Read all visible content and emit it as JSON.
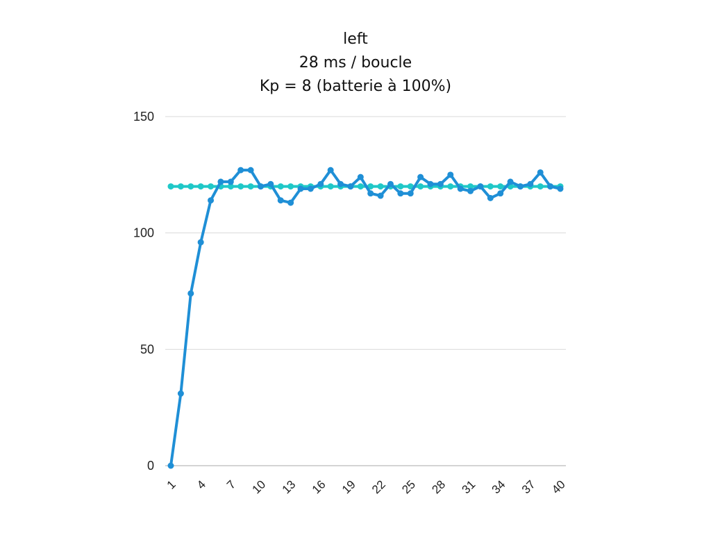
{
  "chart_data": {
    "type": "line",
    "title_lines": [
      "left",
      "28 ms / boucle",
      "Kp = 8 (batterie à 100%)"
    ],
    "xlabel": "",
    "ylabel": "",
    "x": [
      1,
      2,
      3,
      4,
      5,
      6,
      7,
      8,
      9,
      10,
      11,
      12,
      13,
      14,
      15,
      16,
      17,
      18,
      19,
      20,
      21,
      22,
      23,
      24,
      25,
      26,
      27,
      28,
      29,
      30,
      31,
      32,
      33,
      34,
      35,
      36,
      37,
      38,
      39,
      40
    ],
    "x_tick_labels": [
      "1",
      "4",
      "7",
      "10",
      "13",
      "16",
      "19",
      "22",
      "25",
      "28",
      "31",
      "34",
      "37",
      "40"
    ],
    "ylim": [
      0,
      150
    ],
    "y_ticks": [
      0,
      50,
      100,
      150
    ],
    "grid": true,
    "legend": "none",
    "series": [
      {
        "color": "#1f8fd6",
        "values": [
          0,
          31,
          74,
          96,
          114,
          122,
          122,
          127,
          127,
          120,
          121,
          114,
          113,
          119,
          119,
          121,
          127,
          121,
          120,
          124,
          117,
          116,
          121,
          117,
          117,
          124,
          121,
          121,
          125,
          119,
          118,
          120,
          115,
          117,
          122,
          120,
          121,
          126,
          120,
          119
        ]
      },
      {
        "color": "#1fc8c8",
        "values": [
          120,
          120,
          120,
          120,
          120,
          120,
          120,
          120,
          120,
          120,
          120,
          120,
          120,
          120,
          120,
          120,
          120,
          120,
          120,
          120,
          120,
          120,
          120,
          120,
          120,
          120,
          120,
          120,
          120,
          120,
          120,
          120,
          120,
          120,
          120,
          120,
          120,
          120,
          120,
          120
        ]
      }
    ]
  }
}
